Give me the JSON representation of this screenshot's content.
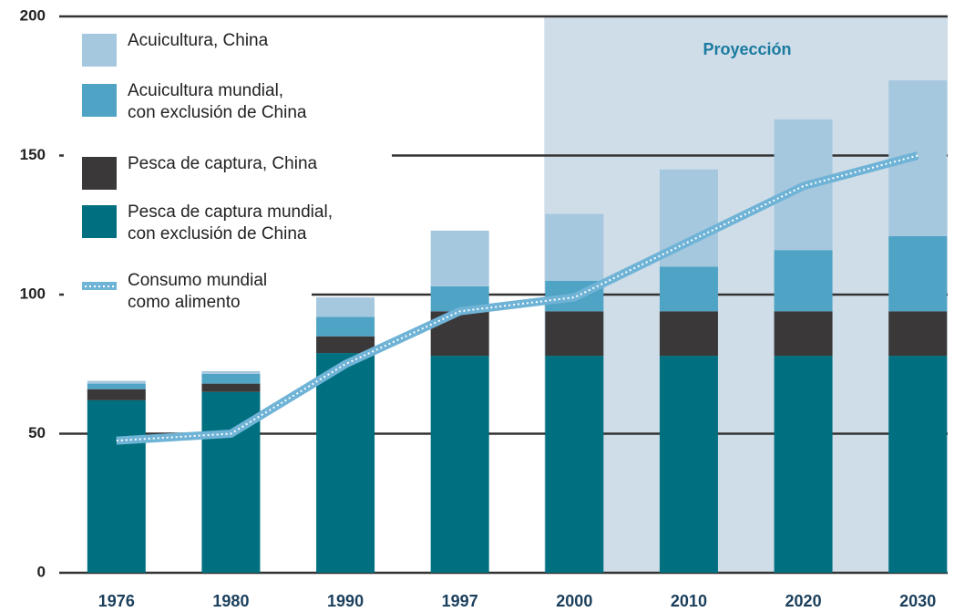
{
  "chart_data": {
    "type": "stacked_bar",
    "annotation": "Proyección",
    "categories": [
      "1976",
      "1980",
      "1990",
      "1997",
      "2000",
      "2010",
      "2020",
      "2030"
    ],
    "series": [
      {
        "name": "Pesca de captura mundial,\ncon exclusión de China",
        "color": "#006f80",
        "values": [
          62,
          65,
          79,
          78,
          78,
          78,
          78,
          78
        ]
      },
      {
        "name": "Pesca de captura, China",
        "color": "#3a3838",
        "values": [
          4,
          3,
          6,
          16,
          16,
          16,
          16,
          16
        ]
      },
      {
        "name": "Acuicultura mundial,\ncon exclusión de China",
        "color": "#4fa3c4",
        "values": [
          2,
          3.5,
          7,
          9,
          11,
          16,
          22,
          27
        ]
      },
      {
        "name": "Acuicultura, China",
        "color": "#a6c8df",
        "values": [
          1,
          1,
          7,
          20,
          24,
          35,
          47,
          56
        ]
      },
      {
        "name": "Consumo mundial\ncomo alimento",
        "color": "#6fb3d6",
        "type": "line",
        "values": [
          47.5,
          50,
          75,
          94,
          99,
          119,
          139,
          150
        ]
      }
    ],
    "projection_start": "2000",
    "ylim": [
      0,
      200
    ],
    "yticks": [
      0,
      50,
      100,
      150,
      200
    ],
    "grid": true
  }
}
